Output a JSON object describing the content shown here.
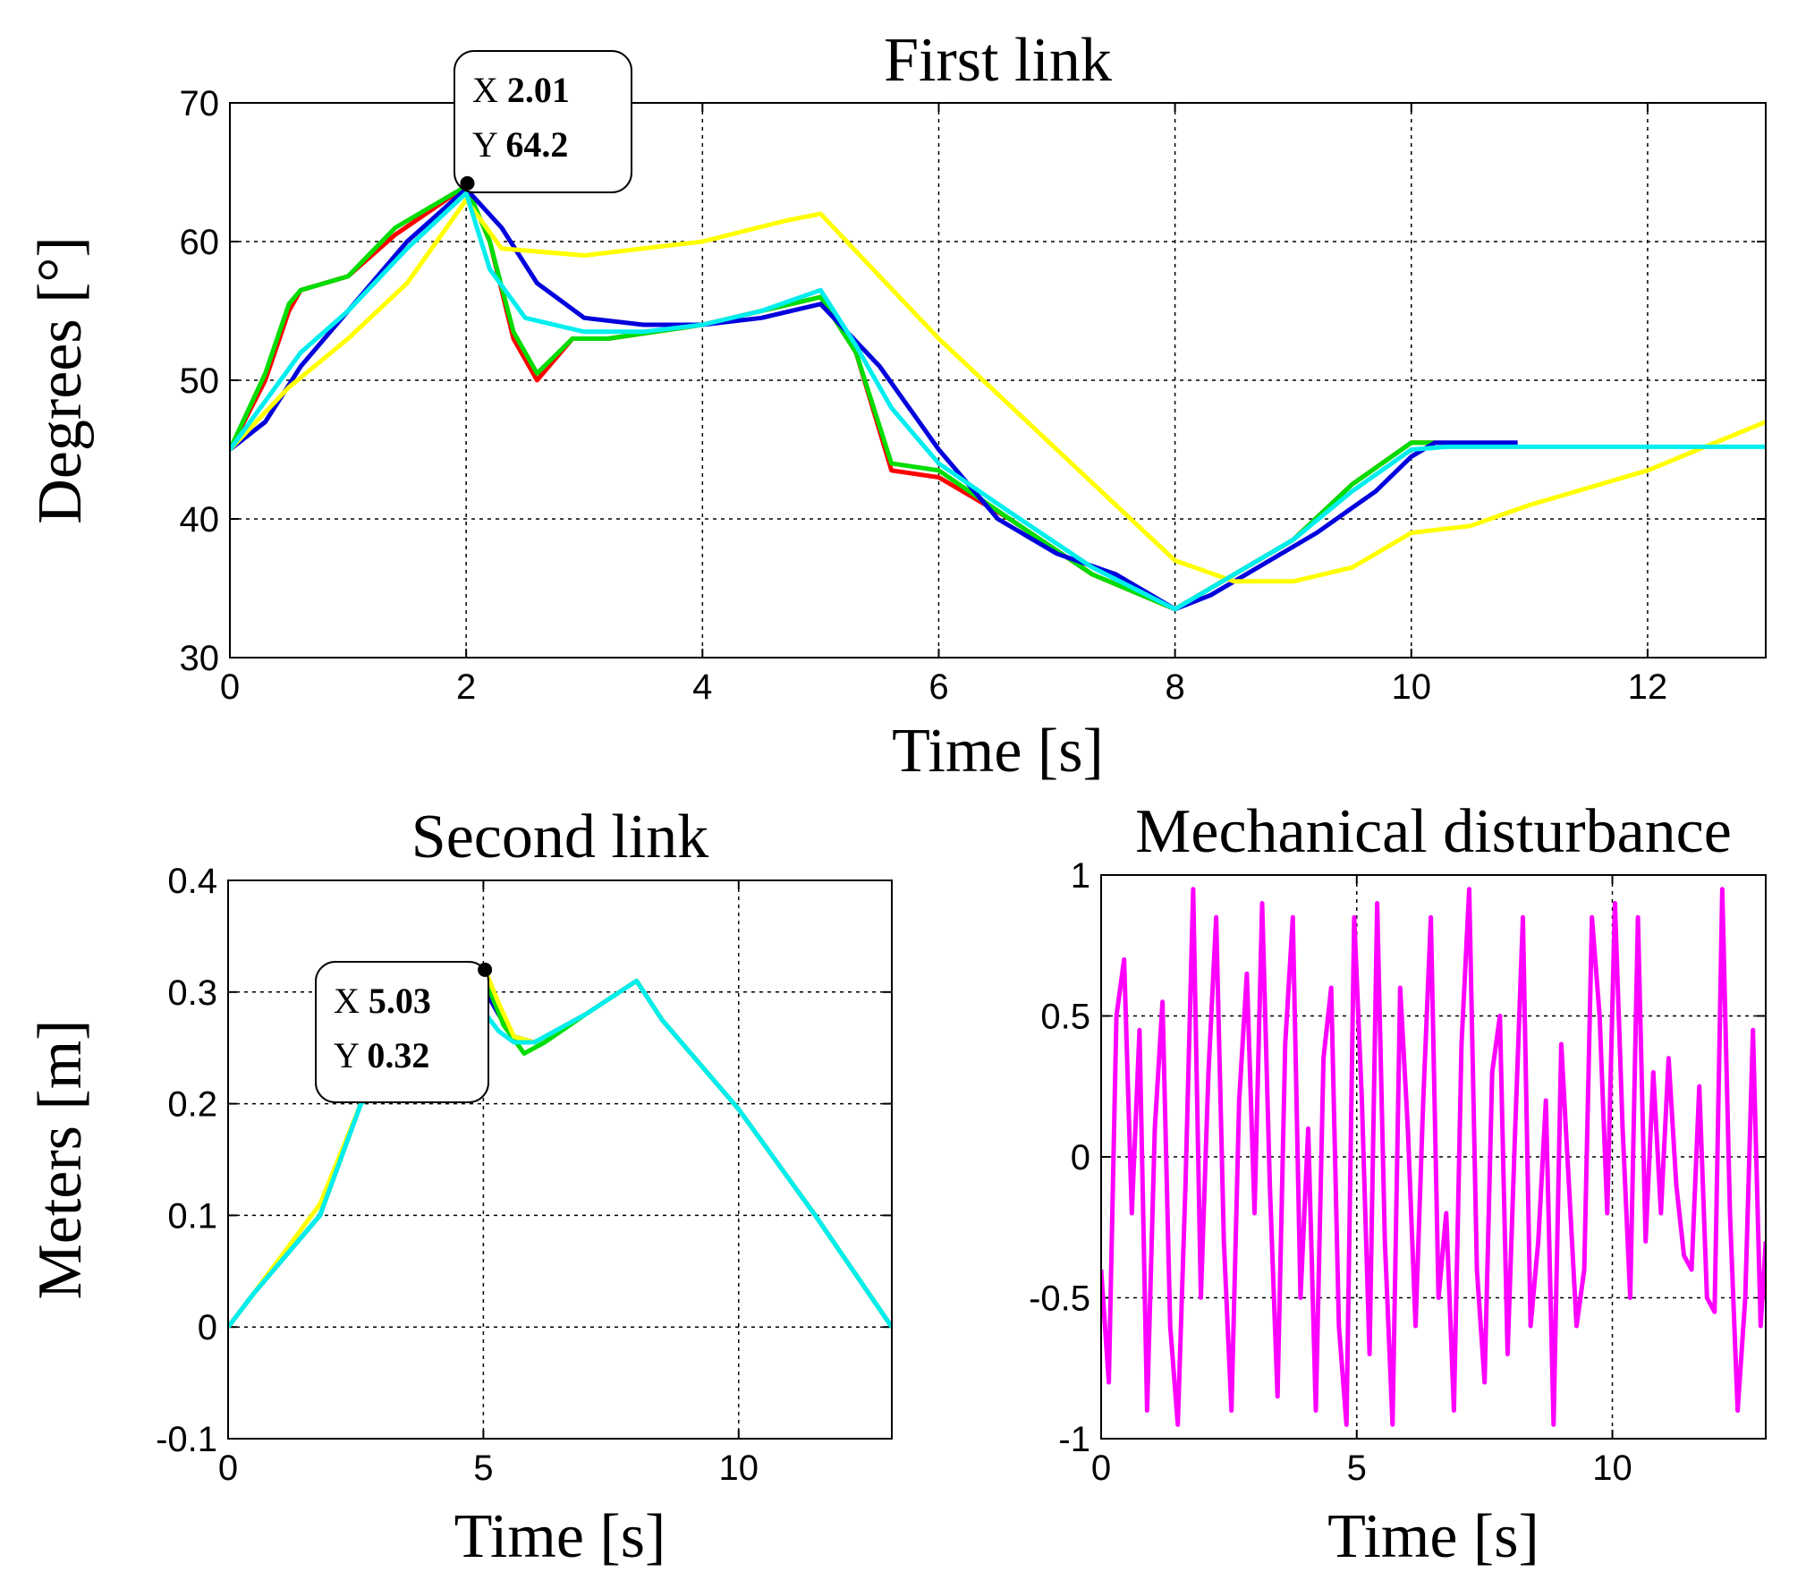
{
  "chart_data": [
    {
      "id": "first",
      "type": "line",
      "title": "First link",
      "xlabel": "Time [s]",
      "ylabel": "Degrees [°]",
      "xlim": [
        0,
        13
      ],
      "ylim": [
        30,
        70
      ],
      "xticks": [
        0,
        2,
        4,
        6,
        8,
        10,
        12
      ],
      "yticks": [
        30,
        40,
        50,
        60,
        70
      ],
      "grid": true,
      "series": [
        {
          "name": "red",
          "color": "#ff0000",
          "x": [
            0,
            0.3,
            0.5,
            0.6,
            1,
            1.4,
            2,
            2.2,
            2.4,
            2.6,
            2.9,
            3.2,
            3.6,
            4,
            4.5,
            5,
            5.3,
            5.6,
            6,
            6.6,
            7.3,
            8,
            8.5,
            9,
            9.5,
            10,
            10.2
          ],
          "y": [
            45,
            50,
            55,
            56.5,
            57.5,
            60.5,
            64,
            60,
            53,
            50,
            53,
            53,
            53.5,
            54,
            55,
            56,
            52,
            43.5,
            43,
            40,
            36,
            33.5,
            36,
            38.5,
            42.5,
            45.5,
            45.5
          ]
        },
        {
          "name": "green",
          "color": "#00dd00",
          "x": [
            0,
            0.3,
            0.5,
            0.6,
            1,
            1.4,
            2,
            2.2,
            2.4,
            2.6,
            2.9,
            3.2,
            3.6,
            4,
            4.5,
            5,
            5.3,
            5.6,
            6,
            6.6,
            7.3,
            8,
            8.5,
            9,
            9.5,
            10,
            10.2
          ],
          "y": [
            45,
            50.5,
            55.5,
            56.5,
            57.5,
            61,
            64,
            60,
            53.5,
            50.5,
            53,
            53,
            53.5,
            54,
            55,
            56,
            52,
            44,
            43.5,
            40,
            36,
            33.5,
            36,
            38.5,
            42.5,
            45.5,
            45.5
          ]
        },
        {
          "name": "blue",
          "color": "#0000dd",
          "x": [
            0,
            0.3,
            0.6,
            1,
            1.5,
            2,
            2.3,
            2.6,
            3,
            3.5,
            4,
            4.5,
            5,
            5.5,
            6,
            6.5,
            7,
            7.5,
            8,
            8.3,
            8.7,
            9.2,
            9.7,
            10,
            10.2,
            10.9
          ],
          "y": [
            45,
            47,
            51,
            55,
            60,
            63.8,
            61,
            57,
            54.5,
            54,
            54,
            54.5,
            55.5,
            51,
            45,
            40,
            37.5,
            36,
            33.5,
            34.5,
            36.5,
            39,
            42,
            44.5,
            45.5,
            45.5
          ]
        },
        {
          "name": "yellow",
          "color": "#ffff00",
          "x": [
            0,
            0.5,
            1,
            1.5,
            2,
            2.3,
            3,
            4,
            4.7,
            5,
            5.5,
            6,
            7,
            8,
            8.5,
            9,
            9.5,
            10,
            10.5,
            11,
            12,
            13
          ],
          "y": [
            45,
            49.5,
            53,
            57,
            63,
            59.5,
            59,
            60,
            61.5,
            62,
            57.5,
            53,
            45,
            37,
            35.5,
            35.5,
            36.5,
            39,
            39.5,
            41,
            43.5,
            47
          ]
        },
        {
          "name": "cyan",
          "color": "#00eeee",
          "x": [
            0,
            0.3,
            0.6,
            1,
            1.5,
            2,
            2.2,
            2.5,
            3,
            3.5,
            4,
            4.5,
            5,
            5.3,
            5.6,
            6,
            6.6,
            7.3,
            8,
            8.5,
            9,
            9.5,
            10,
            10.3,
            11,
            12,
            13
          ],
          "y": [
            45,
            48.5,
            52,
            55,
            59.5,
            63.5,
            58,
            54.5,
            53.5,
            53.5,
            54,
            55,
            56.5,
            52.5,
            48,
            44,
            40.5,
            36.5,
            33.5,
            36,
            38.5,
            42,
            45,
            45.2,
            45.2,
            45.2,
            45.2
          ]
        }
      ],
      "datatip": {
        "x": 2.01,
        "y": 64.2,
        "x_label": "X",
        "y_label": "Y",
        "x_text": "2.01",
        "y_text": "64.2"
      }
    },
    {
      "id": "second",
      "type": "line",
      "title": "Second link",
      "xlabel": "Time [s]",
      "ylabel": "Meters [m]",
      "xlim": [
        0,
        13
      ],
      "ylim": [
        -0.1,
        0.4
      ],
      "xticks": [
        0,
        5,
        10
      ],
      "yticks": [
        -0.1,
        0,
        0.1,
        0.2,
        0.3,
        0.4
      ],
      "grid": true,
      "series": [
        {
          "name": "blue",
          "color": "#0000dd",
          "x": [
            0,
            0.5,
            1.8,
            2.6,
            5.05,
            5.3,
            5.6,
            6,
            7,
            8,
            8.5,
            10,
            11.5,
            13
          ],
          "y": [
            0,
            0.03,
            0.1,
            0.2,
            0.3,
            0.28,
            0.26,
            0.255,
            0.28,
            0.31,
            0.275,
            0.195,
            0.1,
            0
          ]
        },
        {
          "name": "green",
          "color": "#00dd00",
          "x": [
            0,
            0.5,
            1.8,
            2.6,
            5.05,
            5.4,
            5.8,
            6.2,
            7,
            8,
            8.5,
            10,
            11.5,
            13
          ],
          "y": [
            0,
            0.03,
            0.1,
            0.2,
            0.31,
            0.27,
            0.245,
            0.255,
            0.28,
            0.31,
            0.275,
            0.195,
            0.1,
            0
          ]
        },
        {
          "name": "yellow",
          "color": "#ffff00",
          "x": [
            0,
            0.5,
            1.8,
            2.6,
            5.03,
            5.3,
            5.6,
            6,
            7,
            8,
            8.5,
            10,
            11.5,
            13
          ],
          "y": [
            0,
            0.03,
            0.11,
            0.2,
            0.32,
            0.29,
            0.26,
            0.255,
            0.28,
            0.31,
            0.275,
            0.195,
            0.1,
            0
          ]
        },
        {
          "name": "cyan",
          "color": "#00eeee",
          "x": [
            0,
            0.5,
            1.8,
            2.6,
            5.05,
            5.3,
            5.6,
            6,
            7,
            8,
            8.5,
            10,
            11.5,
            13
          ],
          "y": [
            0,
            0.03,
            0.1,
            0.2,
            0.28,
            0.265,
            0.255,
            0.255,
            0.28,
            0.31,
            0.275,
            0.195,
            0.1,
            0
          ]
        }
      ],
      "datatip": {
        "x": 5.03,
        "y": 0.32,
        "x_label": "X",
        "y_label": "Y",
        "x_text": "5.03",
        "y_text": "0.32"
      }
    },
    {
      "id": "disturbance",
      "type": "line",
      "title": "Mechanical disturbance",
      "xlabel": "Time [s]",
      "ylabel": "",
      "xlim": [
        0,
        13
      ],
      "ylim": [
        -1,
        1
      ],
      "xticks": [
        0,
        5,
        10
      ],
      "yticks": [
        -1,
        -0.5,
        0,
        0.5,
        1
      ],
      "ytick_labels": [
        "-1",
        "-0.5",
        "0",
        "0.5",
        "1"
      ],
      "grid": true,
      "series": [
        {
          "name": "disturbance",
          "color": "#ff00ff",
          "x": [
            0,
            0.15,
            0.3,
            0.45,
            0.6,
            0.75,
            0.9,
            1.05,
            1.2,
            1.35,
            1.5,
            1.65,
            1.8,
            1.95,
            2.1,
            2.25,
            2.4,
            2.55,
            2.7,
            2.85,
            3.0,
            3.15,
            3.3,
            3.45,
            3.6,
            3.75,
            3.9,
            4.05,
            4.2,
            4.35,
            4.5,
            4.65,
            4.8,
            4.95,
            5.1,
            5.25,
            5.4,
            5.55,
            5.7,
            5.85,
            6.0,
            6.15,
            6.3,
            6.45,
            6.6,
            6.75,
            6.9,
            7.05,
            7.2,
            7.35,
            7.5,
            7.65,
            7.8,
            7.95,
            8.1,
            8.25,
            8.4,
            8.55,
            8.7,
            8.85,
            9.0,
            9.15,
            9.3,
            9.45,
            9.6,
            9.75,
            9.9,
            10.05,
            10.2,
            10.35,
            10.5,
            10.65,
            10.8,
            10.95,
            11.1,
            11.25,
            11.4,
            11.55,
            11.7,
            11.85,
            12.0,
            12.15,
            12.3,
            12.45,
            12.6,
            12.75,
            12.9,
            13.0
          ],
          "y": [
            -0.4,
            -0.8,
            0.5,
            0.7,
            -0.2,
            0.45,
            -0.9,
            0.1,
            0.55,
            -0.6,
            -0.95,
            -0.1,
            0.95,
            -0.5,
            0.3,
            0.85,
            -0.3,
            -0.9,
            0.2,
            0.65,
            -0.2,
            0.9,
            -0.1,
            -0.85,
            0.4,
            0.85,
            -0.5,
            0.1,
            -0.9,
            0.35,
            0.6,
            -0.6,
            -0.95,
            0.85,
            0.2,
            -0.7,
            0.9,
            -0.3,
            -0.95,
            0.6,
            0.1,
            -0.6,
            0.2,
            0.85,
            -0.5,
            -0.2,
            -0.9,
            0.4,
            0.95,
            -0.4,
            -0.8,
            0.3,
            0.5,
            -0.7,
            0.1,
            0.85,
            -0.6,
            -0.3,
            0.2,
            -0.95,
            0.4,
            -0.1,
            -0.6,
            -0.4,
            0.85,
            0.5,
            -0.2,
            0.9,
            0.1,
            -0.5,
            0.85,
            -0.3,
            0.3,
            -0.2,
            0.35,
            -0.1,
            -0.35,
            -0.4,
            0.25,
            -0.5,
            -0.55,
            0.95,
            -0.2,
            -0.9,
            -0.5,
            0.45,
            -0.6,
            -0.3
          ]
        }
      ]
    }
  ]
}
